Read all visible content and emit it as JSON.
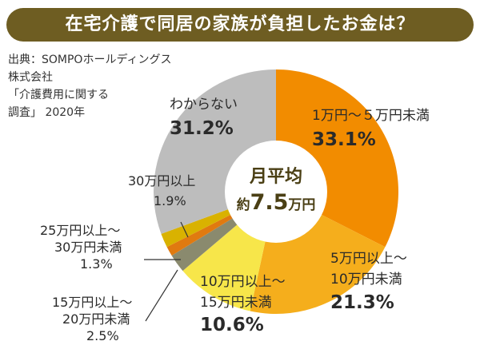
{
  "title": "在宅介護で同居の家族が負担したお金は？",
  "source": {
    "lines": [
      "出典：SOMPOホールディングス",
      "株式会社",
      "「介護費用に関する",
      "調査」 2020年"
    ]
  },
  "center": {
    "line1": "月平均",
    "prefix": "約",
    "value": "7.5",
    "unit": "万円"
  },
  "chart_data": {
    "type": "pie",
    "categories": [
      "1万円～5万円未満",
      "5万円以上～10万円未満",
      "10万円以上～15万円未満",
      "15万円以上～20万円未満",
      "25万円以上～30万円未満",
      "30万円以上",
      "わからない"
    ],
    "values": [
      33.1,
      21.3,
      10.6,
      2.5,
      1.3,
      1.9,
      31.2
    ],
    "unit": "%",
    "title": "在宅介護で同居の家族が負担したお金は？",
    "colors": [
      "#f28c00",
      "#f5ae1c",
      "#f7e64a",
      "#8a8a6e",
      "#e07a10",
      "#d9b200",
      "#bdbdbd"
    ]
  },
  "labels": {
    "s0": {
      "name": "1万円～５万円未満",
      "pct": "33.1%"
    },
    "s1": {
      "name1": "5万円以上～",
      "name2": "10万円未満",
      "pct": "21.3%"
    },
    "s2": {
      "name1": "10万円以上～",
      "name2": "15万円未満",
      "pct": "10.6%"
    },
    "s3": {
      "name1": "15万円以上～",
      "name2": "20万円未満",
      "pct": "2.5%"
    },
    "s4": {
      "name1": "25万円以上～",
      "name2": "30万円未満",
      "pct": "1.3%"
    },
    "s5": {
      "name1": "30万円以上",
      "pct": "1.9%"
    },
    "s6": {
      "name": "わからない",
      "pct": "31.2%"
    }
  }
}
